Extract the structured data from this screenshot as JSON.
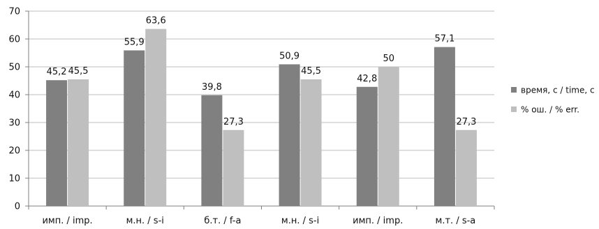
{
  "chart_data": {
    "type": "bar",
    "categories": [
      "имп. / imp.",
      "м.н. / s-i",
      "б.т. / f-a",
      "м.н. / s-i",
      "имп. / imp.",
      "м.т. / s-a"
    ],
    "series": [
      {
        "name": "время, c / time, c",
        "values": [
          45.2,
          55.9,
          39.8,
          50.9,
          42.8,
          57.1
        ],
        "labels": [
          "45,2",
          "55,9",
          "39,8",
          "50,9",
          "42,8",
          "57,1"
        ],
        "color": "#808080"
      },
      {
        "name": "% ош. / % err.",
        "values": [
          45.5,
          63.6,
          27.3,
          45.5,
          50,
          27.3
        ],
        "labels": [
          "45,5",
          "63,6",
          "27,3",
          "45,5",
          "50",
          "27,3"
        ],
        "color": "#bfbfbf"
      }
    ],
    "title": "",
    "xlabel": "",
    "ylabel": "",
    "ylim": [
      0,
      70
    ],
    "yticks": [
      0,
      10,
      20,
      30,
      40,
      50,
      60,
      70
    ],
    "grid": true,
    "legend": "right"
  },
  "colors": {
    "grid": "#bdbdbd",
    "axis": "#7f7f7f",
    "text": "#111111"
  }
}
